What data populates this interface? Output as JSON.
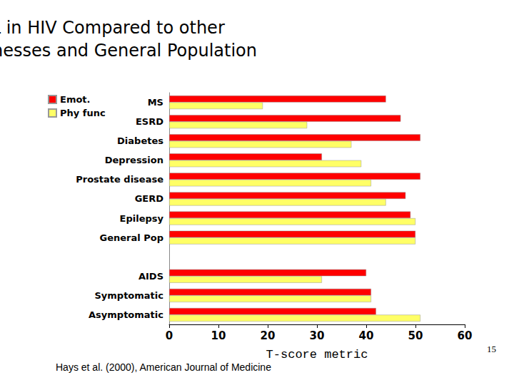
{
  "chart_data": {
    "type": "bar",
    "orientation": "horizontal",
    "title": "HRQOL in HIV Compared to other\nChronic Illnesses and General Population",
    "xlabel": "T-score metric",
    "categories": [
      "MS",
      "ESRD",
      "Diabetes",
      "Depression",
      "Prostate disease",
      "GERD",
      "Epilepsy",
      "General Pop",
      null,
      "AIDS",
      "Symptomatic",
      "Asymptomatic"
    ],
    "series": [
      {
        "name": "Emot.",
        "color": "#ff0000",
        "values": [
          44,
          47,
          51,
          31,
          51,
          48,
          49,
          50,
          null,
          40,
          41,
          42
        ]
      },
      {
        "name": "Phy func",
        "color": "#ffff66",
        "values": [
          19,
          28,
          37,
          39,
          41,
          44,
          50,
          50,
          null,
          31,
          41,
          51
        ]
      }
    ],
    "xlim": [
      0,
      60
    ],
    "xticks": [
      0,
      10,
      20,
      30,
      40,
      50,
      60
    ],
    "grid": false,
    "legend": "upper left",
    "annotations": [
      "Hays et al. (2000), American Journal of Medicine",
      "15"
    ]
  }
}
